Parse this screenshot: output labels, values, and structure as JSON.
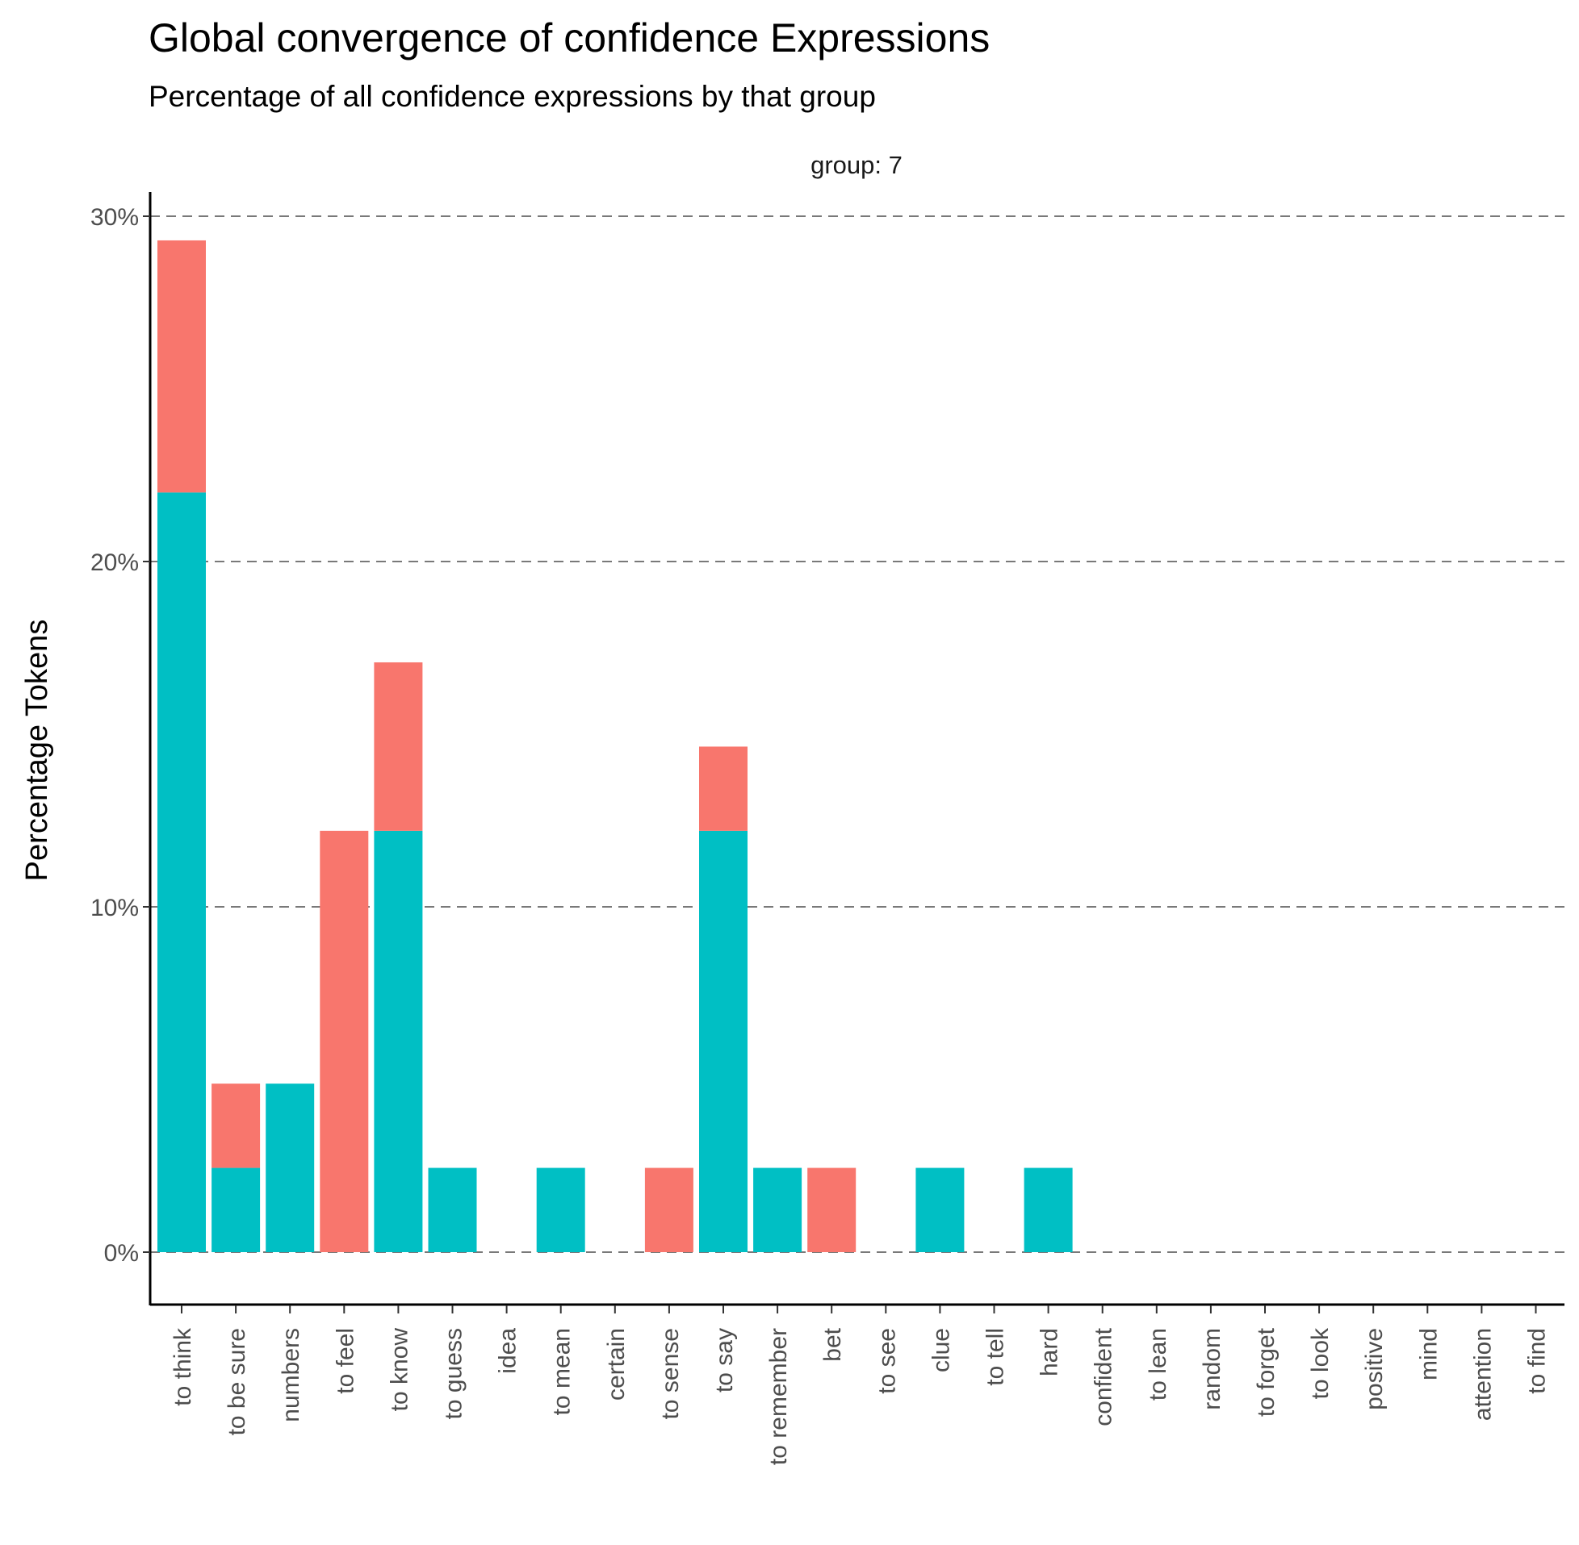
{
  "chart_data": {
    "type": "bar",
    "stacked": true,
    "title": "Global convergence of confidence Expressions",
    "subtitle": "Percentage of all confidence expressions by that group",
    "facet_label": "group: 7",
    "ylabel": "Percentage Tokens",
    "xlabel": "",
    "ylim": [
      0,
      30
    ],
    "yticks": [
      "0%",
      "10%",
      "20%",
      "30%"
    ],
    "ytick_values": [
      0,
      10,
      20,
      30
    ],
    "grid": "horizontal dashed",
    "legend": "none",
    "categories": [
      "to think",
      "to be sure",
      "numbers",
      "to feel",
      "to know",
      "to guess",
      "idea",
      "to mean",
      "certain",
      "to sense",
      "to say",
      "to remember",
      "bet",
      "to see",
      "clue",
      "to tell",
      "hard",
      "confident",
      "to lean",
      "random",
      "to forget",
      "to look",
      "positive",
      "mind",
      "attention",
      "to find"
    ],
    "series": [
      {
        "color": "#00BFC4",
        "values": [
          22.0,
          2.44,
          4.88,
          0,
          12.2,
          2.44,
          0,
          2.44,
          0,
          0,
          12.2,
          2.44,
          0,
          0,
          2.44,
          0,
          2.44,
          0,
          0,
          0,
          0,
          0,
          0,
          0,
          0,
          0
        ]
      },
      {
        "color": "#F8766D",
        "values": [
          7.3,
          2.44,
          0,
          12.2,
          4.88,
          0,
          0,
          0,
          0,
          2.44,
          2.44,
          0,
          2.44,
          0,
          0,
          0,
          0,
          0,
          0,
          0,
          0,
          0,
          0,
          0,
          0,
          0
        ]
      }
    ]
  }
}
